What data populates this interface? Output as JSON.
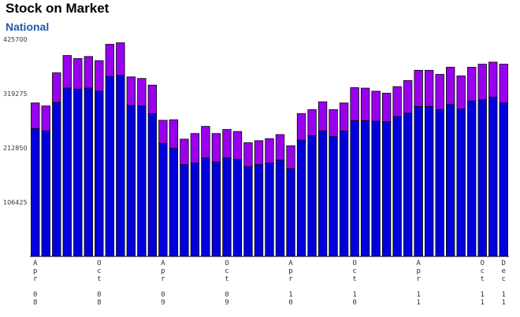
{
  "header": {
    "title": "Stock on Market",
    "subtitle": "National"
  },
  "colors": {
    "lower": "#0000dd",
    "upper": "#9900ee",
    "outline": "#000000",
    "axis": "#000000"
  },
  "chart_data": {
    "type": "bar",
    "stacked": true,
    "ylim": [
      0,
      425700
    ],
    "yticks": [
      106425,
      212850,
      319275,
      425700
    ],
    "grid": false,
    "legend": "none",
    "x": [
      "Apr 08",
      "May 08",
      "Jun 08",
      "Jul 08",
      "Aug 08",
      "Sep 08",
      "Oct 08",
      "Nov 08",
      "Dec 08",
      "Jan 09",
      "Feb 09",
      "Mar 09",
      "Apr 09",
      "May 09",
      "Jun 09",
      "Jul 09",
      "Aug 09",
      "Sep 09",
      "Oct 09",
      "Nov 09",
      "Dec 09",
      "Jan 10",
      "Feb 10",
      "Mar 10",
      "Apr 10",
      "May 10",
      "Jun 10",
      "Jul 10",
      "Aug 10",
      "Sep 10",
      "Oct 10",
      "Nov 10",
      "Dec 10",
      "Jan 11",
      "Feb 11",
      "Mar 11",
      "Apr 11",
      "May 11",
      "Jun 11",
      "Jul 11",
      "Aug 11",
      "Sep 11",
      "Oct 11",
      "Nov 11",
      "Dec 11"
    ],
    "xtick_labels": [
      {
        "index": 0,
        "text": "Apr 08"
      },
      {
        "index": 6,
        "text": "Oct 08"
      },
      {
        "index": 12,
        "text": "Apr 09"
      },
      {
        "index": 18,
        "text": "Oct 09"
      },
      {
        "index": 24,
        "text": "Apr 10"
      },
      {
        "index": 30,
        "text": "Oct 10"
      },
      {
        "index": 36,
        "text": "Apr 11"
      },
      {
        "index": 42,
        "text": "Oct 11"
      },
      {
        "index": 44,
        "text": "Dec 11"
      }
    ],
    "series": [
      {
        "values": [
          251000,
          246000,
          302000,
          330000,
          328000,
          330000,
          324000,
          353000,
          355000,
          296000,
          295000,
          280000,
          222000,
          212000,
          180000,
          183000,
          193000,
          185000,
          193000,
          190000,
          176000,
          180000,
          183000,
          189000,
          172000,
          228000,
          237000,
          246000,
          235000,
          246000,
          266000,
          266000,
          265000,
          264000,
          274000,
          281000,
          294000,
          294000,
          288000,
          298000,
          289000,
          305000,
          307000,
          312000,
          301000
        ]
      },
      {
        "values": [
          50000,
          49000,
          58000,
          64000,
          60000,
          62000,
          60000,
          63000,
          64000,
          56000,
          54000,
          56000,
          45000,
          56000,
          50000,
          58000,
          62000,
          56000,
          56000,
          55000,
          47000,
          47000,
          48000,
          50000,
          45000,
          52000,
          51000,
          57000,
          53000,
          55000,
          65000,
          64000,
          59000,
          56000,
          59000,
          64000,
          71000,
          71000,
          69000,
          73000,
          65000,
          66000,
          70000,
          69000,
          76000
        ]
      }
    ]
  }
}
